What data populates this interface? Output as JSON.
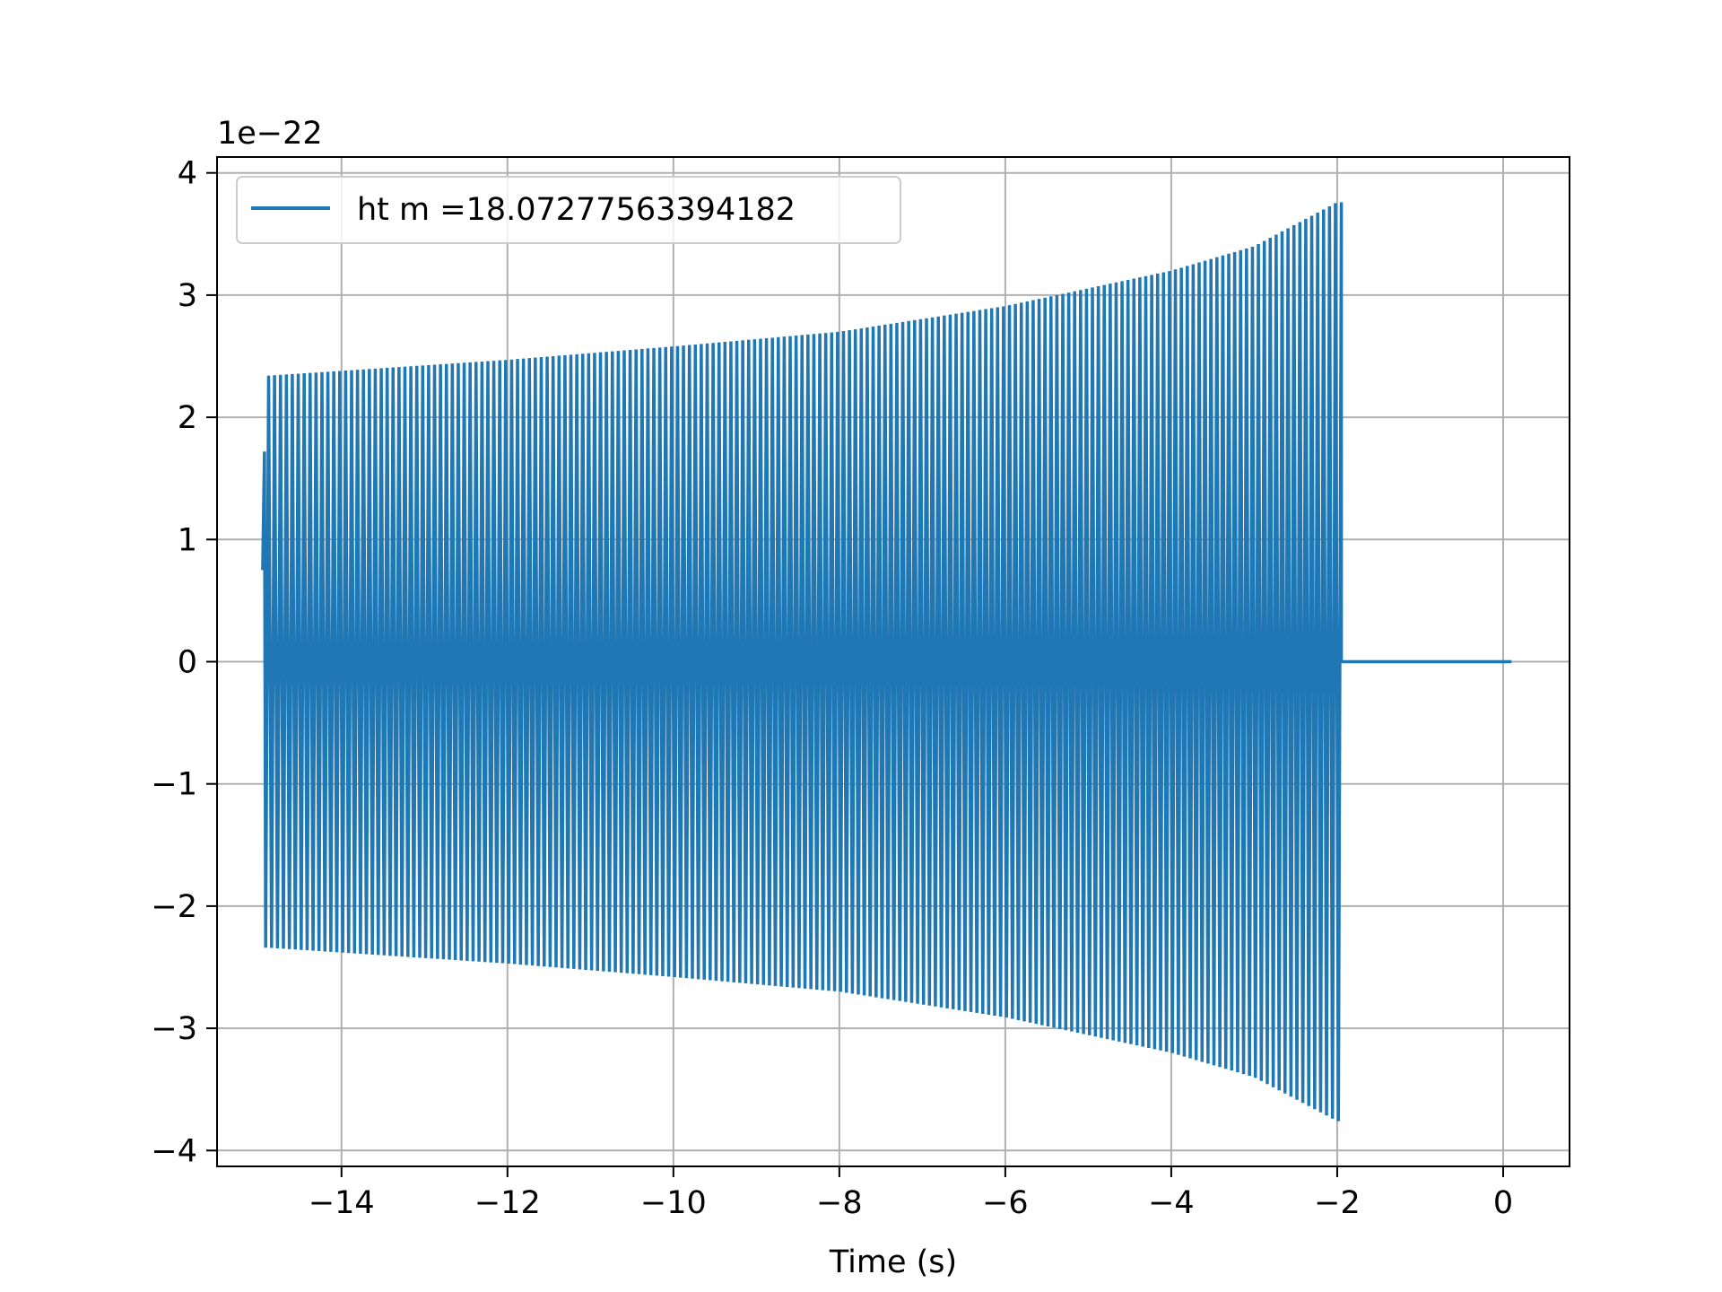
{
  "chart_data": {
    "type": "line",
    "title": "",
    "xlabel": "Time (s)",
    "ylabel": "",
    "y_offset_label": "1e−22",
    "xlim": [
      -15.5,
      0.8
    ],
    "ylim": [
      -4.13,
      4.13
    ],
    "grid": true,
    "legend_position": "upper-left",
    "x_ticks": [
      {
        "value": -14,
        "label": "−14"
      },
      {
        "value": -12,
        "label": "−12"
      },
      {
        "value": -10,
        "label": "−10"
      },
      {
        "value": -8,
        "label": "−8"
      },
      {
        "value": -6,
        "label": "−6"
      },
      {
        "value": -4,
        "label": "−4"
      },
      {
        "value": -2,
        "label": "−2"
      },
      {
        "value": 0,
        "label": "0"
      }
    ],
    "y_ticks": [
      {
        "value": 4,
        "label": "4"
      },
      {
        "value": 3,
        "label": "3"
      },
      {
        "value": 2,
        "label": "2"
      },
      {
        "value": 1,
        "label": "1"
      },
      {
        "value": 0,
        "label": "0"
      },
      {
        "value": -1,
        "label": "−1"
      },
      {
        "value": -2,
        "label": "−2"
      },
      {
        "value": -3,
        "label": "−3"
      },
      {
        "value": -4,
        "label": "−4"
      }
    ],
    "series": [
      {
        "name": "ht m =18.07277563394182",
        "color": "#1f77b4",
        "start_value": 0.75,
        "first_peak": 1.72,
        "envelope": [
          {
            "t": -14.9,
            "amp": 2.34
          },
          {
            "t": -14.0,
            "amp": 2.38
          },
          {
            "t": -12.0,
            "amp": 2.47
          },
          {
            "t": -10.0,
            "amp": 2.58
          },
          {
            "t": -8.0,
            "amp": 2.7
          },
          {
            "t": -6.0,
            "amp": 2.91
          },
          {
            "t": -4.0,
            "amp": 3.2
          },
          {
            "t": -3.0,
            "amp": 3.4
          },
          {
            "t": -2.0,
            "amp": 3.76
          }
        ],
        "signal_start": -14.95,
        "signal_end": -1.95,
        "zero_end": 0.1,
        "cycles_per_second": 14
      }
    ]
  }
}
